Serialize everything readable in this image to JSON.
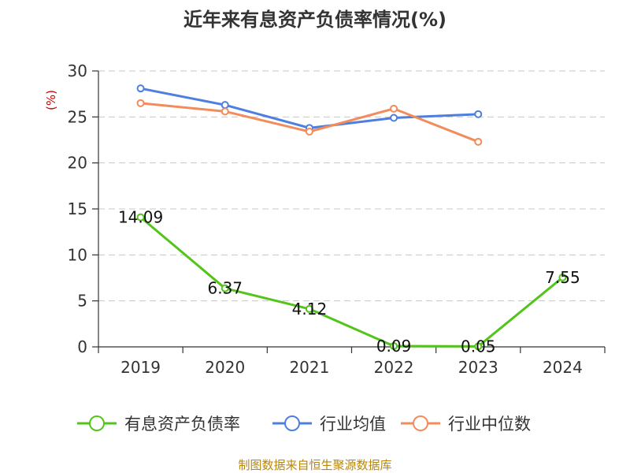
{
  "chart_data": {
    "type": "line",
    "title": "近年来有息资产负债率情况(%)",
    "y_unit": "(%)",
    "categories": [
      "2019",
      "2020",
      "2021",
      "2022",
      "2023",
      "2024"
    ],
    "ylim": [
      0,
      30
    ],
    "yticks": [
      0,
      5,
      10,
      15,
      20,
      25,
      30
    ],
    "grid": true,
    "legend_position": "bottom",
    "series": [
      {
        "name": "有息资产负债率",
        "color": "#52c41a",
        "values": [
          14.09,
          6.37,
          4.12,
          0.09,
          0.05,
          7.55
        ],
        "labels": [
          "14.09",
          "6.37",
          "4.12",
          "0.09",
          "0.05",
          "7.55"
        ]
      },
      {
        "name": "行业均值",
        "color": "#4e7fe0",
        "values": [
          28.1,
          26.3,
          23.8,
          24.9,
          25.3,
          null
        ]
      },
      {
        "name": "行业中位数",
        "color": "#f28c5c",
        "values": [
          26.5,
          25.6,
          23.4,
          25.9,
          22.3,
          null
        ]
      }
    ],
    "source": "制图数据来自恒生聚源数据库"
  }
}
